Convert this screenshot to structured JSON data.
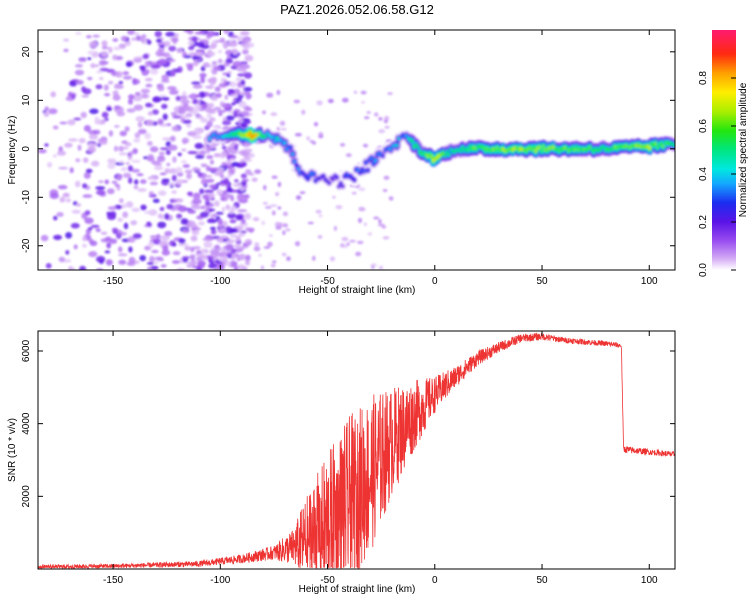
{
  "title": "PAZ1.2026.052.06.58.G12",
  "chart_data": [
    {
      "type": "heatmap",
      "xlabel": "Height of straight line (km)",
      "ylabel": "Frequency (Hz)",
      "xlim": [
        -185,
        112
      ],
      "ylim": [
        -25,
        24.5
      ],
      "x_ticks": [
        -150,
        -100,
        -50,
        0,
        50,
        100
      ],
      "x_tick_labels": [
        "-150",
        "-100",
        "-50",
        "0",
        "50",
        "100"
      ],
      "y_ticks": [
        -20,
        -10,
        0,
        10,
        20
      ],
      "y_tick_labels": [
        "-20",
        "-10",
        "0",
        "10",
        "20"
      ],
      "colorbar": {
        "label": "Normalized spectral amplitude",
        "range": [
          0,
          1
        ],
        "ticks": [
          0.0,
          0.2,
          0.4,
          0.6,
          0.8
        ],
        "tick_labels": [
          "0.0",
          "0.2",
          "0.4",
          "0.6",
          "0.8"
        ]
      },
      "ridge": {
        "x": [
          -105,
          -95,
          -85,
          -78,
          -72,
          -68,
          -63,
          -58,
          -53,
          -48,
          -44,
          -40,
          -36,
          -30,
          -24,
          -18,
          -14,
          -10,
          -5,
          0,
          5,
          10,
          20,
          40,
          60,
          80,
          100,
          112
        ],
        "freq": [
          2.5,
          3,
          3,
          3,
          2,
          0,
          -4,
          -6,
          -6,
          -6,
          -7,
          -6,
          -5,
          -3,
          -1,
          1,
          3,
          1,
          -1,
          -2,
          -1,
          0,
          0,
          0,
          0,
          0,
          0.5,
          1
        ],
        "amplitude": [
          0.35,
          0.45,
          0.85,
          0.45,
          0.4,
          0.35,
          0.3,
          0.3,
          0.25,
          0.25,
          0.2,
          0.3,
          0.3,
          0.35,
          0.3,
          0.4,
          0.35,
          0.5,
          0.55,
          0.7,
          0.55,
          0.5,
          0.6,
          0.65,
          0.6,
          0.55,
          0.65,
          0.5
        ]
      },
      "noise_region": {
        "x_range": [
          -185,
          -100
        ],
        "freq_range": [
          -25,
          24.5
        ],
        "amplitude_range": [
          0.0,
          0.12
        ]
      }
    },
    {
      "type": "line",
      "xlabel": "Height of straight line (km)",
      "ylabel": "SNR (10 * v/v)",
      "xlim": [
        -185,
        112
      ],
      "ylim": [
        0,
        6550
      ],
      "x_ticks": [
        -150,
        -100,
        -50,
        0,
        50,
        100
      ],
      "x_tick_labels": [
        "-150",
        "-100",
        "-50",
        "0",
        "50",
        "100"
      ],
      "y_ticks": [
        2000,
        4000,
        6000
      ],
      "y_tick_labels": [
        "2000",
        "4000",
        "6000"
      ],
      "line_color": "#ee3333",
      "series": [
        {
          "name": "SNR",
          "x": [
            -185,
            -150,
            -110,
            -90,
            -75,
            -66,
            -60,
            -50,
            -40,
            -30,
            -20,
            -10,
            0,
            10,
            20,
            30,
            40,
            50,
            60,
            70,
            80,
            87,
            88,
            90,
            100,
            112
          ],
          "base": [
            60,
            80,
            140,
            280,
            450,
            600,
            800,
            1200,
            1800,
            2600,
            3500,
            4200,
            4800,
            5300,
            5800,
            6100,
            6350,
            6400,
            6300,
            6250,
            6200,
            6150,
            3300,
            3280,
            3220,
            3150
          ],
          "swing": [
            60,
            60,
            80,
            120,
            200,
            500,
            1200,
            2000,
            2400,
            2200,
            1500,
            1000,
            500,
            300,
            200,
            150,
            120,
            100,
            80,
            80,
            70,
            70,
            100,
            100,
            80,
            80
          ]
        }
      ]
    }
  ]
}
